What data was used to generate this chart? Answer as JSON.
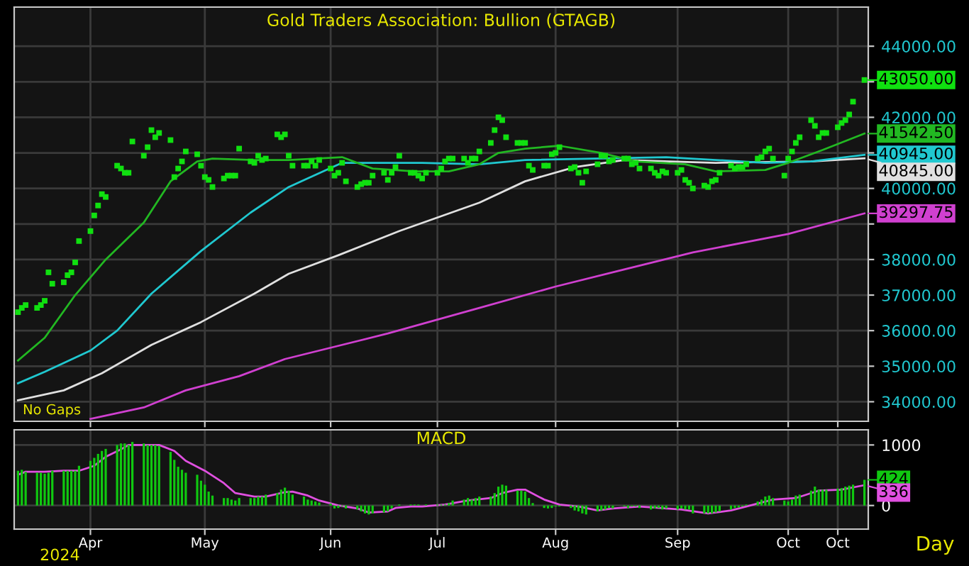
{
  "chart_data": [
    {
      "type": "line",
      "title": "Gold Traders Association: Bullion (GTAGB)",
      "grid": true,
      "legend": false,
      "tick_labels": "y",
      "x": [
        "2024-03-13",
        "2024-03-14",
        "2024-03-15",
        "2024-03-18",
        "2024-03-19",
        "2024-03-20",
        "2024-03-21",
        "2024-03-22",
        "2024-03-25",
        "2024-03-26",
        "2024-03-27",
        "2024-03-28",
        "2024-03-29",
        "2024-04-01",
        "2024-04-02",
        "2024-04-03",
        "2024-04-04",
        "2024-04-05",
        "2024-04-08",
        "2024-04-09",
        "2024-04-10",
        "2024-04-11",
        "2024-04-12",
        "2024-04-15",
        "2024-04-16",
        "2024-04-17",
        "2024-04-18",
        "2024-04-19",
        "2024-04-22",
        "2024-04-23",
        "2024-04-24",
        "2024-04-25",
        "2024-04-26",
        "2024-04-29",
        "2024-04-30",
        "2024-05-01",
        "2024-05-02",
        "2024-05-03",
        "2024-05-06",
        "2024-05-07",
        "2024-05-08",
        "2024-05-09",
        "2024-05-10",
        "2024-05-13",
        "2024-05-14",
        "2024-05-15",
        "2024-05-16",
        "2024-05-17",
        "2024-05-20",
        "2024-05-21",
        "2024-05-22",
        "2024-05-23",
        "2024-05-24",
        "2024-05-27",
        "2024-05-28",
        "2024-05-29",
        "2024-05-30",
        "2024-05-31",
        "2024-06-03",
        "2024-06-04",
        "2024-06-05",
        "2024-06-06",
        "2024-06-07",
        "2024-06-10",
        "2024-06-11",
        "2024-06-12",
        "2024-06-13",
        "2024-06-14",
        "2024-06-17",
        "2024-06-18",
        "2024-06-19",
        "2024-06-20",
        "2024-06-21",
        "2024-06-24",
        "2024-06-25",
        "2024-06-26",
        "2024-06-27",
        "2024-06-28",
        "2024-07-01",
        "2024-07-02",
        "2024-07-03",
        "2024-07-04",
        "2024-07-05",
        "2024-07-08",
        "2024-07-09",
        "2024-07-10",
        "2024-07-11",
        "2024-07-12",
        "2024-07-15",
        "2024-07-16",
        "2024-07-17",
        "2024-07-18",
        "2024-07-19",
        "2024-07-22",
        "2024-07-23",
        "2024-07-24",
        "2024-07-25",
        "2024-07-26",
        "2024-07-29",
        "2024-07-30",
        "2024-07-31",
        "2024-08-01",
        "2024-08-02",
        "2024-08-05",
        "2024-08-06",
        "2024-08-07",
        "2024-08-08",
        "2024-08-09",
        "2024-08-12",
        "2024-08-13",
        "2024-08-14",
        "2024-08-15",
        "2024-08-16",
        "2024-08-19",
        "2024-08-20",
        "2024-08-21",
        "2024-08-22",
        "2024-08-23",
        "2024-08-26",
        "2024-08-27",
        "2024-08-28",
        "2024-08-29",
        "2024-08-30",
        "2024-09-02",
        "2024-09-03",
        "2024-09-04",
        "2024-09-05",
        "2024-09-06",
        "2024-09-09",
        "2024-09-10",
        "2024-09-11",
        "2024-09-12",
        "2024-09-13",
        "2024-09-16",
        "2024-09-17",
        "2024-09-18",
        "2024-09-19",
        "2024-09-20",
        "2024-09-23",
        "2024-09-24",
        "2024-09-25",
        "2024-09-26",
        "2024-09-27",
        "2024-09-30",
        "2024-10-01",
        "2024-10-02",
        "2024-10-03",
        "2024-10-04",
        "2024-10-07",
        "2024-10-08",
        "2024-10-09",
        "2024-10-10",
        "2024-10-11",
        "2024-10-14",
        "2024-10-15",
        "2024-10-16",
        "2024-10-17",
        "2024-10-18",
        "2024-10-21"
      ],
      "xlim": [
        "2024-03-12",
        "2024-10-22"
      ],
      "xticks": [
        {
          "value": "2024-04-01",
          "label": null
        },
        {
          "value": "2024-05-01",
          "label": null
        },
        {
          "value": "2024-06-03",
          "label": null
        },
        {
          "value": "2024-07-01",
          "label": null
        },
        {
          "value": "2024-08-01",
          "label": null
        },
        {
          "value": "2024-09-02",
          "label": null
        },
        {
          "value": "2024-10-01",
          "label": null
        },
        {
          "value": "2024-10-14",
          "label": null
        }
      ],
      "ylim": [
        33450,
        45100
      ],
      "yticks": [
        {
          "value": 34000,
          "label": "34000.00"
        },
        {
          "value": 35000,
          "label": "35000.00"
        },
        {
          "value": 36000,
          "label": "36000.00"
        },
        {
          "value": 37000,
          "label": "37000.00"
        },
        {
          "value": 38000,
          "label": "38000.00"
        },
        {
          "value": 39000,
          "label": null
        },
        {
          "value": 40000,
          "label": "40000.00"
        },
        {
          "value": 41000,
          "label": null
        },
        {
          "value": 42000,
          "label": "42000.00"
        },
        {
          "value": 43000,
          "label": null
        },
        {
          "value": 44000,
          "label": "44000.00"
        }
      ],
      "series": [
        {
          "color": "#d040d0",
          "x": [
            "2024-04-01",
            "2024-04-15",
            "2024-04-26",
            "2024-05-10",
            "2024-05-22",
            "2024-06-03",
            "2024-06-18",
            "2024-07-12",
            "2024-08-01",
            "2024-08-19",
            "2024-09-06",
            "2024-10-01",
            "2024-10-21"
          ],
          "values": [
            33520,
            33840,
            34320,
            34720,
            35200,
            35520,
            35920,
            36640,
            37240,
            37720,
            38200,
            38720,
            39297.75
          ]
        },
        {
          "color": "#e0e0e0",
          "x": [
            "2024-03-13",
            "2024-03-25",
            "2024-04-04",
            "2024-04-17",
            "2024-04-30",
            "2024-05-14",
            "2024-05-23",
            "2024-06-05",
            "2024-06-21",
            "2024-07-12",
            "2024-07-24",
            "2024-08-06",
            "2024-08-19",
            "2024-09-12",
            "2024-10-07",
            "2024-10-21"
          ],
          "values": [
            34040,
            34320,
            34800,
            35600,
            36240,
            37040,
            37600,
            38120,
            38800,
            39600,
            40200,
            40600,
            40800,
            40720,
            40760,
            40845
          ]
        },
        {
          "color": "#20c8d0",
          "x": [
            "2024-03-13",
            "2024-03-20",
            "2024-04-01",
            "2024-04-08",
            "2024-04-17",
            "2024-04-30",
            "2024-05-13",
            "2024-05-23",
            "2024-06-06",
            "2024-06-27",
            "2024-07-12",
            "2024-07-24",
            "2024-08-30",
            "2024-09-25",
            "2024-10-07",
            "2024-10-21"
          ],
          "values": [
            34520,
            34840,
            35440,
            36000,
            37040,
            38240,
            39320,
            40040,
            40720,
            40720,
            40680,
            40800,
            40880,
            40720,
            40760,
            40945
          ]
        },
        {
          "color": "#22b822",
          "x": [
            "2024-03-13",
            "2024-03-20",
            "2024-03-28",
            "2024-04-05",
            "2024-04-15",
            "2024-04-22",
            "2024-04-29",
            "2024-05-03",
            "2024-05-14",
            "2024-05-23",
            "2024-06-06",
            "2024-06-14",
            "2024-06-25",
            "2024-07-04",
            "2024-07-12",
            "2024-07-17",
            "2024-07-24",
            "2024-08-02",
            "2024-08-13",
            "2024-08-22",
            "2024-09-04",
            "2024-09-12",
            "2024-09-25",
            "2024-10-01",
            "2024-10-10",
            "2024-10-21"
          ],
          "values": [
            35160,
            35800,
            37000,
            38000,
            39040,
            40200,
            40760,
            40840,
            40800,
            40800,
            40880,
            40560,
            40480,
            40480,
            40680,
            41000,
            41120,
            41200,
            41000,
            40760,
            40680,
            40480,
            40520,
            40720,
            41080,
            41542.5
          ]
        },
        {
          "type": "scatter",
          "marker": "square",
          "color": "#10e010",
          "values": [
            36520,
            36640,
            36720,
            36640,
            36720,
            36840,
            37640,
            37320,
            37360,
            37560,
            37640,
            37920,
            38520,
            38800,
            39240,
            39520,
            39840,
            39760,
            40640,
            40560,
            40440,
            40440,
            41320,
            40920,
            41160,
            41640,
            41440,
            41560,
            41360,
            40320,
            40560,
            40760,
            41040,
            40960,
            40640,
            40320,
            40240,
            40040,
            40280,
            40360,
            40360,
            40360,
            41120,
            40760,
            40720,
            40920,
            40800,
            40840,
            41520,
            41440,
            41520,
            40920,
            40640,
            40640,
            40640,
            40760,
            40640,
            40800,
            40560,
            40360,
            40440,
            40720,
            40200,
            40040,
            40120,
            40160,
            40160,
            40360,
            40440,
            40240,
            40440,
            40600,
            40920,
            40440,
            40440,
            40360,
            40280,
            40440,
            40440,
            40560,
            40760,
            40840,
            40840,
            40840,
            40720,
            40840,
            40840,
            41040,
            41280,
            41640,
            42000,
            41920,
            41440,
            41280,
            41280,
            41280,
            40640,
            40520,
            40640,
            40640,
            40960,
            41000,
            41160,
            40560,
            40600,
            40440,
            40160,
            40480,
            40680,
            40920,
            40920,
            40760,
            40800,
            40840,
            40840,
            40680,
            40720,
            40560,
            40560,
            40440,
            40360,
            40480,
            40440,
            40440,
            40520,
            40240,
            40160,
            40000,
            40080,
            40040,
            40200,
            40240,
            40440,
            40640,
            40560,
            40600,
            40600,
            40680,
            40840,
            40880,
            41040,
            41120,
            40840,
            40360,
            40840,
            41040,
            41280,
            41440,
            41920,
            41760,
            41440,
            41560,
            41560,
            41720,
            41840,
            41920,
            42080,
            42440,
            43050
          ]
        }
      ],
      "annotations": [
        "No Gaps",
        {
          "text": "43050.00",
          "x": "2024-10-21",
          "y": 43050
        },
        {
          "text": "41542.50",
          "x": "2024-10-21",
          "y": 41542.5
        },
        {
          "text": "40945.00",
          "x": "2024-10-21",
          "y": 40945
        },
        {
          "text": "40845.00",
          "x": "2024-10-21",
          "y": 40845
        },
        {
          "text": "39297.75",
          "x": "2024-10-21",
          "y": 39297.75
        }
      ]
    },
    {
      "type": "bar",
      "title": "MACD",
      "grid": true,
      "legend": false,
      "x": [
        "2024-03-13",
        "2024-03-14",
        "2024-03-15",
        "2024-03-18",
        "2024-03-19",
        "2024-03-20",
        "2024-03-21",
        "2024-03-22",
        "2024-03-25",
        "2024-03-26",
        "2024-03-27",
        "2024-03-28",
        "2024-03-29",
        "2024-04-01",
        "2024-04-02",
        "2024-04-03",
        "2024-04-04",
        "2024-04-05",
        "2024-04-08",
        "2024-04-09",
        "2024-04-10",
        "2024-04-11",
        "2024-04-12",
        "2024-04-15",
        "2024-04-16",
        "2024-04-17",
        "2024-04-18",
        "2024-04-19",
        "2024-04-22",
        "2024-04-23",
        "2024-04-24",
        "2024-04-25",
        "2024-04-26",
        "2024-04-29",
        "2024-04-30",
        "2024-05-01",
        "2024-05-02",
        "2024-05-03",
        "2024-05-06",
        "2024-05-07",
        "2024-05-08",
        "2024-05-09",
        "2024-05-10",
        "2024-05-13",
        "2024-05-14",
        "2024-05-15",
        "2024-05-16",
        "2024-05-17",
        "2024-05-20",
        "2024-05-21",
        "2024-05-22",
        "2024-05-23",
        "2024-05-24",
        "2024-05-27",
        "2024-05-28",
        "2024-05-29",
        "2024-05-30",
        "2024-05-31",
        "2024-06-03",
        "2024-06-04",
        "2024-06-05",
        "2024-06-06",
        "2024-06-07",
        "2024-06-10",
        "2024-06-11",
        "2024-06-12",
        "2024-06-13",
        "2024-06-14",
        "2024-06-17",
        "2024-06-18",
        "2024-06-19",
        "2024-06-20",
        "2024-06-21",
        "2024-06-24",
        "2024-06-25",
        "2024-06-26",
        "2024-06-27",
        "2024-06-28",
        "2024-07-01",
        "2024-07-02",
        "2024-07-03",
        "2024-07-04",
        "2024-07-05",
        "2024-07-08",
        "2024-07-09",
        "2024-07-10",
        "2024-07-11",
        "2024-07-12",
        "2024-07-15",
        "2024-07-16",
        "2024-07-17",
        "2024-07-18",
        "2024-07-19",
        "2024-07-22",
        "2024-07-23",
        "2024-07-24",
        "2024-07-25",
        "2024-07-26",
        "2024-07-29",
        "2024-07-30",
        "2024-07-31",
        "2024-08-01",
        "2024-08-02",
        "2024-08-05",
        "2024-08-06",
        "2024-08-07",
        "2024-08-08",
        "2024-08-09",
        "2024-08-12",
        "2024-08-13",
        "2024-08-14",
        "2024-08-15",
        "2024-08-16",
        "2024-08-19",
        "2024-08-20",
        "2024-08-21",
        "2024-08-22",
        "2024-08-23",
        "2024-08-26",
        "2024-08-27",
        "2024-08-28",
        "2024-08-29",
        "2024-08-30",
        "2024-09-02",
        "2024-09-03",
        "2024-09-04",
        "2024-09-05",
        "2024-09-06",
        "2024-09-09",
        "2024-09-10",
        "2024-09-11",
        "2024-09-12",
        "2024-09-13",
        "2024-09-16",
        "2024-09-17",
        "2024-09-18",
        "2024-09-19",
        "2024-09-20",
        "2024-09-23",
        "2024-09-24",
        "2024-09-25",
        "2024-09-26",
        "2024-09-27",
        "2024-09-30",
        "2024-10-01",
        "2024-10-02",
        "2024-10-03",
        "2024-10-04",
        "2024-10-07",
        "2024-10-08",
        "2024-10-09",
        "2024-10-10",
        "2024-10-11",
        "2024-10-14",
        "2024-10-15",
        "2024-10-16",
        "2024-10-17",
        "2024-10-18",
        "2024-10-21"
      ],
      "xlim": [
        "2024-03-12",
        "2024-10-22"
      ],
      "xticks": [
        {
          "value": "2024-04-01",
          "label": "Apr"
        },
        {
          "value": "2024-05-01",
          "label": "May"
        },
        {
          "value": "2024-06-03",
          "label": "Jun"
        },
        {
          "value": "2024-07-01",
          "label": "Jul"
        },
        {
          "value": "2024-08-01",
          "label": "Aug"
        },
        {
          "value": "2024-09-02",
          "label": "Sep"
        },
        {
          "value": "2024-10-01",
          "label": "Oct"
        },
        {
          "value": "2024-10-14",
          "label": "Oct"
        }
      ],
      "ylim": [
        -390,
        1250
      ],
      "yticks": [
        0,
        1000
      ],
      "series": [
        {
          "color": "#10c810",
          "values": [
            574,
            590,
            557,
            541,
            541,
            525,
            541,
            574,
            574,
            574,
            574,
            574,
            656,
            738,
            787,
            853,
            902,
            935,
            1000,
            1025,
            1025,
            1000,
            1050,
            1025,
            1000,
            1000,
            1000,
            984,
            886,
            754,
            640,
            590,
            541,
            508,
            410,
            344,
            230,
            164,
            123,
            123,
            98,
            82,
            123,
            123,
            123,
            148,
            148,
            180,
            205,
            262,
            295,
            246,
            180,
            148,
            98,
            82,
            66,
            49,
            33,
            -49,
            -41,
            -16,
            -49,
            -66,
            -98,
            -131,
            -148,
            -131,
            -115,
            -98,
            -49,
            null,
            16,
            16,
            16,
            16,
            null,
            16,
            16,
            16,
            16,
            41,
            82,
            98,
            123,
            98,
            123,
            148,
            148,
            205,
            312,
            344,
            328,
            246,
            246,
            230,
            123,
            41,
            -41,
            -49,
            -41,
            -16,
            -16,
            -41,
            -82,
            -98,
            -131,
            -148,
            -98,
            -82,
            -66,
            -41,
            -49,
            -16,
            -41,
            -16,
            -16,
            -41,
            -66,
            -49,
            -41,
            -66,
            -49,
            -66,
            -49,
            -66,
            -66,
            -131,
            -131,
            -131,
            -131,
            -115,
            -98,
            -66,
            -41,
            -33,
            -16,
            16,
            66,
            98,
            148,
            164,
            123,
            82,
            66,
            98,
            164,
            180,
            246,
            312,
            262,
            262,
            262,
            279,
            287,
            312,
            328,
            344,
            424
          ]
        },
        {
          "type": "line",
          "color": "#e050e0",
          "x": [
            "2024-03-13",
            "2024-03-15",
            "2024-03-20",
            "2024-03-25",
            "2024-03-29",
            "2024-04-02",
            "2024-04-05",
            "2024-04-09",
            "2024-04-11",
            "2024-04-19",
            "2024-04-23",
            "2024-04-26",
            "2024-05-01",
            "2024-05-06",
            "2024-05-09",
            "2024-05-14",
            "2024-05-17",
            "2024-05-22",
            "2024-05-24",
            "2024-05-28",
            "2024-05-31",
            "2024-06-05",
            "2024-06-10",
            "2024-06-13",
            "2024-06-18",
            "2024-06-20",
            "2024-06-24",
            "2024-06-27",
            "2024-07-03",
            "2024-07-09",
            "2024-07-15",
            "2024-07-18",
            "2024-07-22",
            "2024-07-24",
            "2024-07-29",
            "2024-08-02",
            "2024-08-07",
            "2024-08-12",
            "2024-08-16",
            "2024-08-23",
            "2024-09-03",
            "2024-09-10",
            "2024-09-16",
            "2024-09-20",
            "2024-09-27",
            "2024-10-03",
            "2024-10-09",
            "2024-10-15",
            "2024-10-21"
          ],
          "values": [
            508,
            557,
            557,
            574,
            574,
            656,
            804,
            927,
            1000,
            1000,
            902,
            738,
            574,
            369,
            205,
            148,
            148,
            221,
            230,
            164,
            82,
            0,
            -49,
            -115,
            -98,
            -41,
            -16,
            -16,
            16,
            82,
            123,
            205,
            262,
            262,
            98,
            16,
            -16,
            -82,
            -49,
            -16,
            -66,
            -131,
            -82,
            -16,
            98,
            123,
            246,
            262,
            336
          ]
        }
      ],
      "annotations": [
        "2024",
        "Day",
        {
          "text": "424",
          "x": "2024-10-21",
          "y": 424
        },
        {
          "text": "336",
          "x": "2024-10-21",
          "y": 336
        }
      ]
    }
  ]
}
